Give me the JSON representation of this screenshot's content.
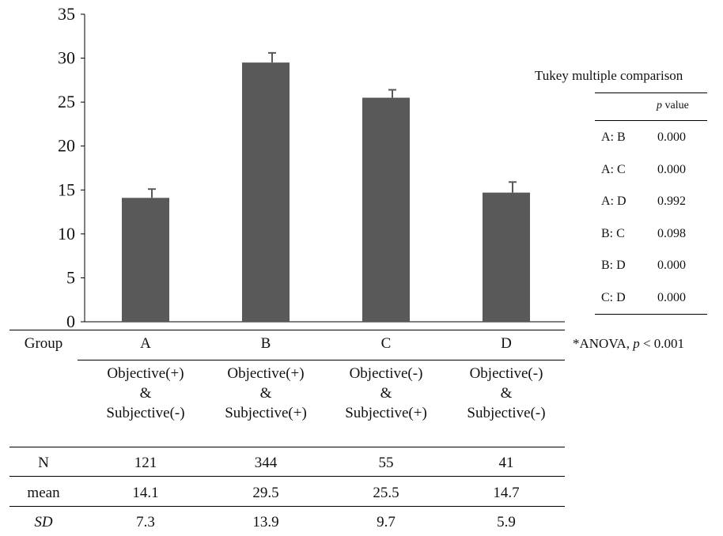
{
  "chart_data": {
    "type": "bar",
    "categories": [
      "A",
      "B",
      "C",
      "D"
    ],
    "values": [
      14.1,
      29.5,
      25.5,
      14.7
    ],
    "error_upper": [
      15.1,
      30.6,
      26.4,
      15.9
    ],
    "ylim": [
      0,
      35
    ],
    "yticks": [
      0,
      5,
      10,
      15,
      20,
      25,
      30,
      35
    ],
    "bar_color": "#595959",
    "grid": false,
    "legend": "none"
  },
  "table": {
    "group_label": "Group",
    "groups": [
      "A",
      "B",
      "C",
      "D"
    ],
    "descriptions": [
      [
        "Objective(+)",
        "&",
        "Subjective(-)"
      ],
      [
        "Objective(+)",
        "&",
        "Subjective(+)"
      ],
      [
        "Objective(-)",
        "&",
        "Subjective(+)"
      ],
      [
        "Objective(-)",
        "&",
        "Subjective(-)"
      ]
    ],
    "rows": [
      {
        "label": "N",
        "values": [
          "121",
          "344",
          "55",
          "41"
        ]
      },
      {
        "label": "mean",
        "values": [
          "14.1",
          "29.5",
          "25.5",
          "14.7"
        ]
      },
      {
        "label": "SD",
        "values": [
          "7.3",
          "13.9",
          "9.7",
          "5.9"
        ]
      }
    ]
  },
  "tukey": {
    "title": "Tukey  multiple  comparison",
    "header_p": "p",
    "header_value": " value",
    "pairs": [
      {
        "pair": "A: B",
        "p": "0.000"
      },
      {
        "pair": "A: C",
        "p": "0.000"
      },
      {
        "pair": "A: D",
        "p": "0.992"
      },
      {
        "pair": "B: C",
        "p": "0.098"
      },
      {
        "pair": "B: D",
        "p": "0.000"
      },
      {
        "pair": "C: D",
        "p": "0.000"
      }
    ]
  },
  "anova_note": {
    "prefix": "*ANOVA,  ",
    "p": "p",
    "suffix": " < 0.001"
  }
}
